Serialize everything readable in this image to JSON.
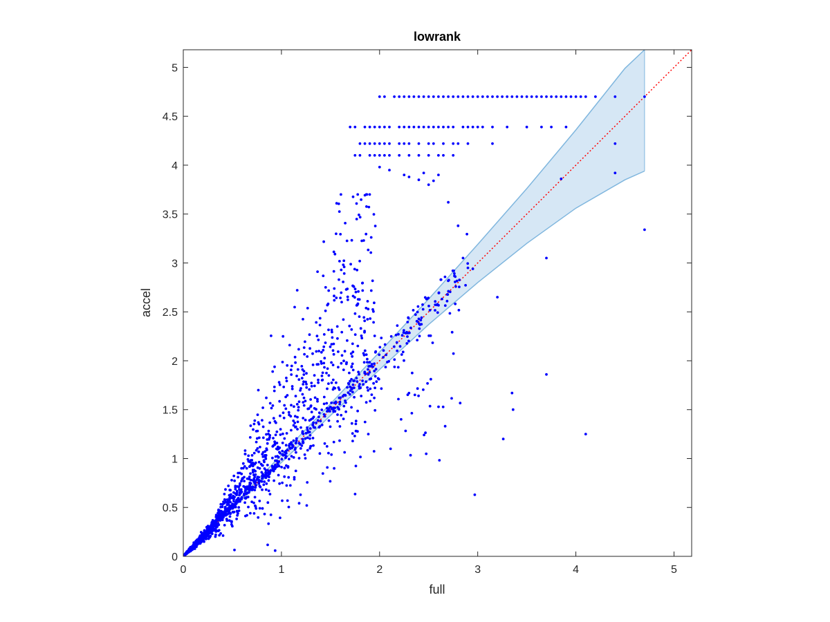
{
  "chart_data": {
    "type": "scatter",
    "title": "lowrank",
    "xlabel": "full",
    "ylabel": "accel",
    "xlim": [
      0,
      5.18
    ],
    "ylim": [
      0,
      5.18
    ],
    "xticks": [
      0,
      1,
      2,
      3,
      4,
      5
    ],
    "xtick_labels": [
      "0",
      "1",
      "2",
      "3",
      "4",
      "5"
    ],
    "yticks": [
      0,
      0.5,
      1,
      1.5,
      2,
      2.5,
      3,
      3.5,
      4,
      4.5,
      5
    ],
    "ytick_labels": [
      "0",
      "0.5",
      "1",
      "1.5",
      "2",
      "2.5",
      "3",
      "3.5",
      "4",
      "4.5",
      "5"
    ],
    "grid": false,
    "legend": "none",
    "colors": {
      "points": "#0000ff",
      "band_fill": "#d6e7f5",
      "band_edge": "#7fb6de",
      "identity_line": "#ff0000",
      "axes": "#262626"
    },
    "identity_line": {
      "x": [
        0,
        5.18
      ],
      "y": [
        0,
        5.18
      ],
      "style": "dotted"
    },
    "confidence_band": {
      "x": [
        0.0,
        0.5,
        1.0,
        1.5,
        2.0,
        2.5,
        3.0,
        3.5,
        4.0,
        4.5,
        4.7
      ],
      "upper": [
        0.02,
        0.51,
        1.04,
        1.56,
        2.09,
        2.63,
        3.19,
        3.76,
        4.36,
        4.99,
        5.18
      ],
      "lower": [
        -0.01,
        0.49,
        0.96,
        1.44,
        1.91,
        2.37,
        2.8,
        3.2,
        3.56,
        3.85,
        3.94
      ]
    },
    "series": [
      {
        "x": [
          2.0,
          2.05,
          2.15,
          2.2,
          2.25,
          2.3,
          2.35,
          2.4,
          2.45,
          2.5,
          2.55,
          2.6,
          2.65,
          2.7,
          2.75,
          2.8,
          2.85,
          2.9,
          2.95,
          3.0,
          3.05,
          3.1,
          3.15,
          3.2,
          3.25,
          3.3,
          3.35,
          3.4,
          3.45,
          3.5,
          3.55,
          3.6,
          3.65,
          3.7,
          3.75,
          3.8,
          3.85,
          3.9,
          3.95,
          4.0,
          4.05,
          4.1,
          4.2,
          4.4,
          4.7,
          1.7,
          1.75,
          1.85,
          1.9,
          1.95,
          2.0,
          2.05,
          2.1,
          2.2,
          2.25,
          2.3,
          2.35,
          2.4,
          2.45,
          2.5,
          2.55,
          2.6,
          2.65,
          2.7,
          2.75,
          2.85,
          2.9,
          2.95,
          3.0,
          3.05,
          3.15,
          3.3,
          3.5,
          3.65,
          3.75,
          3.9,
          1.8,
          1.85,
          1.9,
          1.95,
          2.0,
          2.05,
          2.1,
          2.2,
          2.25,
          2.3,
          2.4,
          2.5,
          2.55,
          2.65,
          2.75,
          2.8,
          2.9,
          3.15,
          1.75,
          1.8,
          1.9,
          1.95,
          2.0,
          2.05,
          2.1,
          2.2,
          2.3,
          2.4,
          2.5,
          2.6,
          2.65,
          2.75,
          4.4,
          4.4,
          4.7,
          3.7,
          4.1,
          3.2,
          3.35,
          3.36,
          3.26,
          2.97,
          3.7,
          3.85,
          2.0,
          2.1,
          2.25,
          2.3,
          2.4,
          2.45,
          2.5,
          2.55,
          2.6,
          2.7,
          2.8,
          2.85,
          2.9,
          2.95
        ],
        "y": [
          4.7,
          4.7,
          4.7,
          4.7,
          4.7,
          4.7,
          4.7,
          4.7,
          4.7,
          4.7,
          4.7,
          4.7,
          4.7,
          4.7,
          4.7,
          4.7,
          4.7,
          4.7,
          4.7,
          4.7,
          4.7,
          4.7,
          4.7,
          4.7,
          4.7,
          4.7,
          4.7,
          4.7,
          4.7,
          4.7,
          4.7,
          4.7,
          4.7,
          4.7,
          4.7,
          4.7,
          4.7,
          4.7,
          4.7,
          4.7,
          4.7,
          4.7,
          4.7,
          4.7,
          4.7,
          4.39,
          4.39,
          4.39,
          4.39,
          4.39,
          4.39,
          4.39,
          4.39,
          4.39,
          4.39,
          4.39,
          4.39,
          4.39,
          4.39,
          4.39,
          4.39,
          4.39,
          4.39,
          4.39,
          4.39,
          4.39,
          4.39,
          4.39,
          4.39,
          4.39,
          4.39,
          4.39,
          4.39,
          4.39,
          4.39,
          4.39,
          4.22,
          4.22,
          4.22,
          4.22,
          4.22,
          4.22,
          4.22,
          4.22,
          4.22,
          4.22,
          4.22,
          4.22,
          4.22,
          4.22,
          4.22,
          4.22,
          4.22,
          4.22,
          4.1,
          4.1,
          4.1,
          4.1,
          4.1,
          4.1,
          4.1,
          4.1,
          4.1,
          4.1,
          4.1,
          4.1,
          4.1,
          4.1,
          4.22,
          3.92,
          3.34,
          3.05,
          1.25,
          2.65,
          1.67,
          1.5,
          1.2,
          0.63,
          1.86,
          3.86,
          3.98,
          3.95,
          3.9,
          3.88,
          3.85,
          3.92,
          3.8,
          3.84,
          3.9,
          3.62,
          3.38,
          3.05,
          2.95,
          2.94
        ]
      }
    ]
  }
}
